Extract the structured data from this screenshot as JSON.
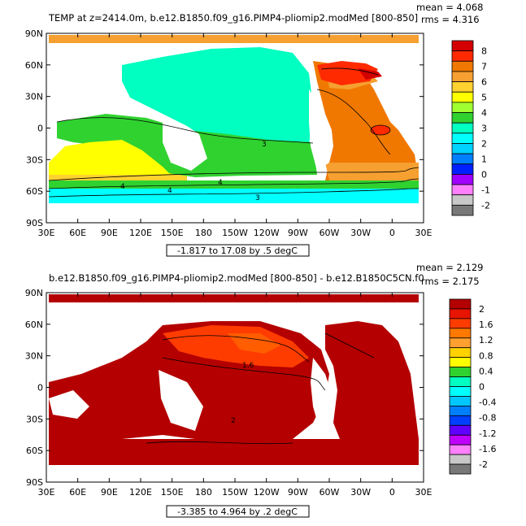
{
  "panels": [
    {
      "title": "TEMP at z=2414.0m, b.e12.B1850.f09_g16.PIMP4-pliomip2.modMed [800-850]",
      "mean": "mean = 4.068",
      "rms": "rms = 4.316",
      "range_label": "-1.817 to 17.08 by .5 degC",
      "y_labels": [
        "90N",
        "60N",
        "30N",
        "0",
        "30S",
        "60S",
        "90S"
      ],
      "x_labels": [
        "30E",
        "60E",
        "90E",
        "120E",
        "150E",
        "180",
        "150W",
        "120W",
        "90W",
        "60W",
        "30W",
        "0",
        "30E"
      ],
      "colorbar": {
        "labels": [
          "8",
          "7",
          "6",
          "5",
          "4",
          "3",
          "2",
          "1",
          "0",
          "-1",
          "-2"
        ],
        "colors": [
          "#d40000",
          "#ff2a00",
          "#f07800",
          "#f5a030",
          "#ffd230",
          "#ffff00",
          "#a0ff30",
          "#30d230",
          "#00ffc0",
          "#00ffff",
          "#00d2ff",
          "#0080ff",
          "#0020ff",
          "#a000ff",
          "#ff80ff",
          "#c8c8c8",
          "#787878"
        ]
      },
      "contour_labels": [
        "3",
        "4",
        "4",
        "4",
        "3"
      ]
    },
    {
      "title": "b.e12.B1850.f09_g16.PIMP4-pliomip2.modMed [800-850] - b.e12.B1850C5CN.f0",
      "mean": "mean = 2.129",
      "rms": "rms = 2.175",
      "range_label": "-3.385 to 4.964 by .2 degC",
      "y_labels": [
        "90N",
        "60N",
        "30N",
        "0",
        "30S",
        "60S",
        "90S"
      ],
      "x_labels": [
        "30E",
        "60E",
        "90E",
        "120E",
        "150E",
        "180",
        "150W",
        "120W",
        "90W",
        "60W",
        "30W",
        "0",
        "30E"
      ],
      "colorbar": {
        "labels": [
          "2",
          "1.6",
          "1.2",
          "0.8",
          "0.4",
          "0",
          "-0.4",
          "-0.8",
          "-1.2",
          "-1.6",
          "-2"
        ],
        "colors": [
          "#b40000",
          "#e61400",
          "#ff3c00",
          "#ff7800",
          "#ffa030",
          "#ffd200",
          "#ffff00",
          "#30d230",
          "#00ffc0",
          "#00ffff",
          "#00c8ff",
          "#0080ff",
          "#0040ff",
          "#6000ff",
          "#c000ff",
          "#ff80ff",
          "#c8c8c8",
          "#787878"
        ]
      },
      "contour_labels": [
        "1.6",
        "2"
      ]
    }
  ]
}
